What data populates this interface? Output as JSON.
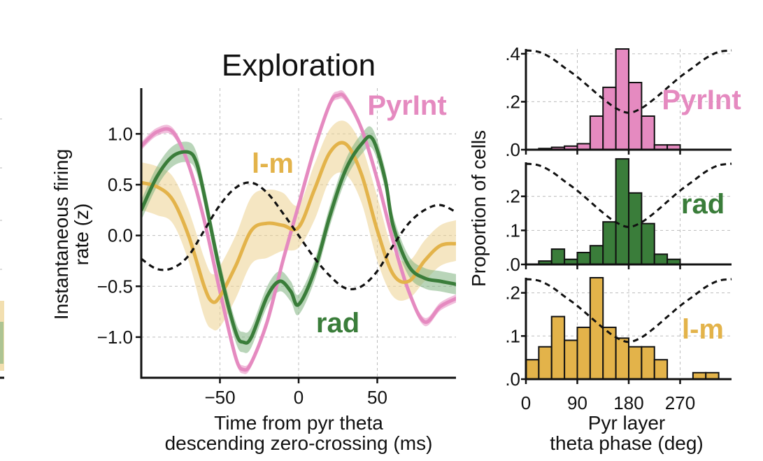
{
  "colors": {
    "pyrint": "#e58ac0",
    "lm": "#e3b34a",
    "lm_fill": "#ecd28f",
    "rad": "#3a7d3a",
    "rad_fill": "#7fb27f",
    "theta": "#111111",
    "axis": "#111111",
    "grid": "#bdbdbd"
  },
  "chart_data": [
    {
      "type": "line",
      "title": "Exploration",
      "xlabel": [
        "Time from pyr theta",
        "descending zero-crossing (ms)"
      ],
      "ylabel": [
        "Instantaneous firing",
        "rate (z)"
      ],
      "xlim": [
        -100,
        100
      ],
      "ylim": [
        -1.4,
        1.45
      ],
      "x_ticks": [
        -50,
        0,
        50
      ],
      "x_tick_labels": [
        "−50",
        "0",
        "50"
      ],
      "y_ticks": [
        1.0,
        0.5,
        0.0,
        -0.5,
        -1.0
      ],
      "y_tick_labels": [
        "1.0",
        "0.5",
        "0.0",
        "−0.5",
        "−1.0"
      ],
      "grid": true,
      "series": [
        {
          "name": "PyrInt",
          "color_key": "pyrint",
          "x": [
            -100,
            -90,
            -80,
            -70,
            -60,
            -50,
            -40,
            -35,
            -30,
            -20,
            -10,
            0,
            10,
            20,
            25,
            30,
            40,
            50,
            60,
            70,
            80,
            90,
            100
          ],
          "y": [
            0.88,
            1.02,
            1.02,
            0.7,
            0.15,
            -0.55,
            -1.2,
            -1.32,
            -1.25,
            -0.85,
            -0.25,
            0.3,
            0.85,
            1.3,
            1.38,
            1.35,
            1.05,
            0.55,
            -0.05,
            -0.55,
            -0.85,
            -0.7,
            -0.62
          ],
          "ci": 0.04
        },
        {
          "name": "l-m",
          "color_key": "lm",
          "x": [
            -100,
            -90,
            -80,
            -70,
            -60,
            -55,
            -50,
            -40,
            -30,
            -20,
            -10,
            0,
            10,
            20,
            30,
            40,
            50,
            60,
            70,
            80,
            90,
            100
          ],
          "y": [
            0.52,
            0.48,
            0.35,
            0.0,
            -0.5,
            -0.65,
            -0.6,
            -0.3,
            0.05,
            0.12,
            0.1,
            0.08,
            0.45,
            0.82,
            0.9,
            0.6,
            0.05,
            -0.38,
            -0.45,
            -0.25,
            -0.1,
            -0.08
          ],
          "ci_low": [
            0.25,
            0.2,
            0.12,
            -0.25,
            -0.8,
            -0.92,
            -0.9,
            -0.62,
            -0.28,
            -0.22,
            -0.15,
            -0.12,
            0.15,
            0.55,
            0.6,
            0.32,
            -0.25,
            -0.6,
            -0.62,
            -0.45,
            -0.3,
            -0.25
          ],
          "ci_high": [
            0.72,
            0.68,
            0.58,
            0.25,
            -0.22,
            -0.38,
            -0.3,
            0.0,
            0.38,
            0.45,
            0.42,
            0.3,
            0.7,
            1.05,
            1.12,
            0.88,
            0.38,
            -0.15,
            -0.25,
            -0.05,
            0.1,
            0.15
          ]
        },
        {
          "name": "rad",
          "color_key": "rad",
          "x": [
            -100,
            -90,
            -80,
            -70,
            -65,
            -60,
            -50,
            -40,
            -35,
            -30,
            -20,
            -12,
            -5,
            0,
            10,
            20,
            30,
            40,
            47,
            55,
            60,
            70,
            80,
            90,
            100
          ],
          "y": [
            0.25,
            0.58,
            0.78,
            0.82,
            0.72,
            0.4,
            -0.35,
            -0.95,
            -1.05,
            -1.0,
            -0.6,
            -0.45,
            -0.55,
            -0.68,
            -0.35,
            0.2,
            0.65,
            0.9,
            0.95,
            0.55,
            0.1,
            -0.3,
            -0.42,
            -0.45,
            -0.48
          ],
          "ci": 0.1
        },
        {
          "name": "",
          "style": "dashed",
          "color_key": "theta",
          "x": [
            -100,
            -90,
            -80,
            -70,
            -60,
            -50,
            -40,
            -30,
            -20,
            -10,
            0,
            10,
            20,
            30,
            40,
            50,
            60,
            70,
            80,
            90,
            100
          ],
          "y": [
            -0.23,
            -0.33,
            -0.32,
            -0.2,
            0.05,
            0.3,
            0.47,
            0.52,
            0.42,
            0.22,
            0.0,
            -0.22,
            -0.4,
            -0.52,
            -0.5,
            -0.35,
            -0.1,
            0.12,
            0.25,
            0.3,
            0.23
          ]
        }
      ],
      "annotations": [
        {
          "text": "PyrInt",
          "color_key": "pyrint"
        },
        {
          "text": "l-m",
          "color_key": "lm"
        },
        {
          "text": "rad",
          "color_key": "rad"
        }
      ]
    },
    {
      "type": "bar",
      "panels": [
        {
          "name": "PyrInt",
          "color_key": "pyrint",
          "bin_width": 22.5,
          "bin_starts": [
            0,
            22.5,
            45,
            67.5,
            90,
            112.5,
            135,
            157.5,
            180,
            202.5,
            225,
            247.5,
            270,
            292.5,
            315,
            337.5
          ],
          "values": [
            0.0,
            0.005,
            0.01,
            0.015,
            0.025,
            0.14,
            0.26,
            0.42,
            0.28,
            0.14,
            0.02,
            0.02,
            0.0,
            0.0,
            0.0,
            0.0
          ],
          "ylim": [
            0,
            0.42
          ],
          "y_ticks": [
            0.0,
            0.2,
            0.4
          ],
          "y_tick_labels": [
            ".0",
            ".2",
            ".4"
          ],
          "theta_wave": [
            1.0,
            0.95,
            0.75,
            0.45,
            0.15,
            -0.2,
            -0.55,
            -0.85,
            -1.0,
            -0.85,
            -0.55,
            -0.2,
            0.15,
            0.45,
            0.75,
            0.95,
            1.0
          ]
        },
        {
          "name": "rad",
          "color_key": "rad",
          "bin_width": 22.5,
          "bin_starts": [
            0,
            22.5,
            45,
            67.5,
            90,
            112.5,
            135,
            157.5,
            180,
            202.5,
            225,
            247.5,
            270,
            292.5,
            315,
            337.5
          ],
          "values": [
            0.0,
            0.01,
            0.045,
            0.015,
            0.035,
            0.055,
            0.125,
            0.31,
            0.21,
            0.12,
            0.03,
            0.015,
            0.0,
            0.0,
            0.0,
            0.0
          ],
          "ylim": [
            0,
            0.3
          ],
          "y_ticks": [
            0.0,
            0.1,
            0.2
          ],
          "y_tick_labels": [
            ".0",
            ".1",
            ".2"
          ],
          "theta_wave": [
            1.0,
            0.95,
            0.75,
            0.45,
            0.15,
            -0.2,
            -0.55,
            -0.85,
            -1.0,
            -0.85,
            -0.55,
            -0.2,
            0.15,
            0.45,
            0.75,
            0.95,
            1.0
          ]
        },
        {
          "name": "l-m",
          "color_key": "lm",
          "bin_width": 22.5,
          "bin_starts": [
            0,
            22.5,
            45,
            67.5,
            90,
            112.5,
            135,
            157.5,
            180,
            202.5,
            225,
            247.5,
            270,
            292.5,
            315,
            337.5
          ],
          "values": [
            0.045,
            0.075,
            0.145,
            0.09,
            0.12,
            0.235,
            0.12,
            0.095,
            0.075,
            0.075,
            0.045,
            0.0,
            0.0,
            0.015,
            0.015,
            0.0
          ],
          "ylim": [
            0,
            0.235
          ],
          "y_ticks": [
            0.0,
            0.1,
            0.2
          ],
          "y_tick_labels": [
            ".0",
            ".1",
            ".2"
          ],
          "theta_wave": [
            1.0,
            0.95,
            0.75,
            0.45,
            0.15,
            -0.2,
            -0.55,
            -0.85,
            -1.0,
            -0.85,
            -0.55,
            -0.2,
            0.15,
            0.45,
            0.75,
            0.95,
            1.0
          ]
        }
      ],
      "xlim": [
        0,
        360
      ],
      "x_ticks": [
        0,
        90,
        180,
        270
      ],
      "x_tick_labels": [
        "0",
        "90",
        "180",
        "270"
      ],
      "xlabel": [
        "Pyr layer",
        "theta phase (deg)"
      ],
      "ylabel": "Proportion of cells",
      "grid": true
    }
  ]
}
